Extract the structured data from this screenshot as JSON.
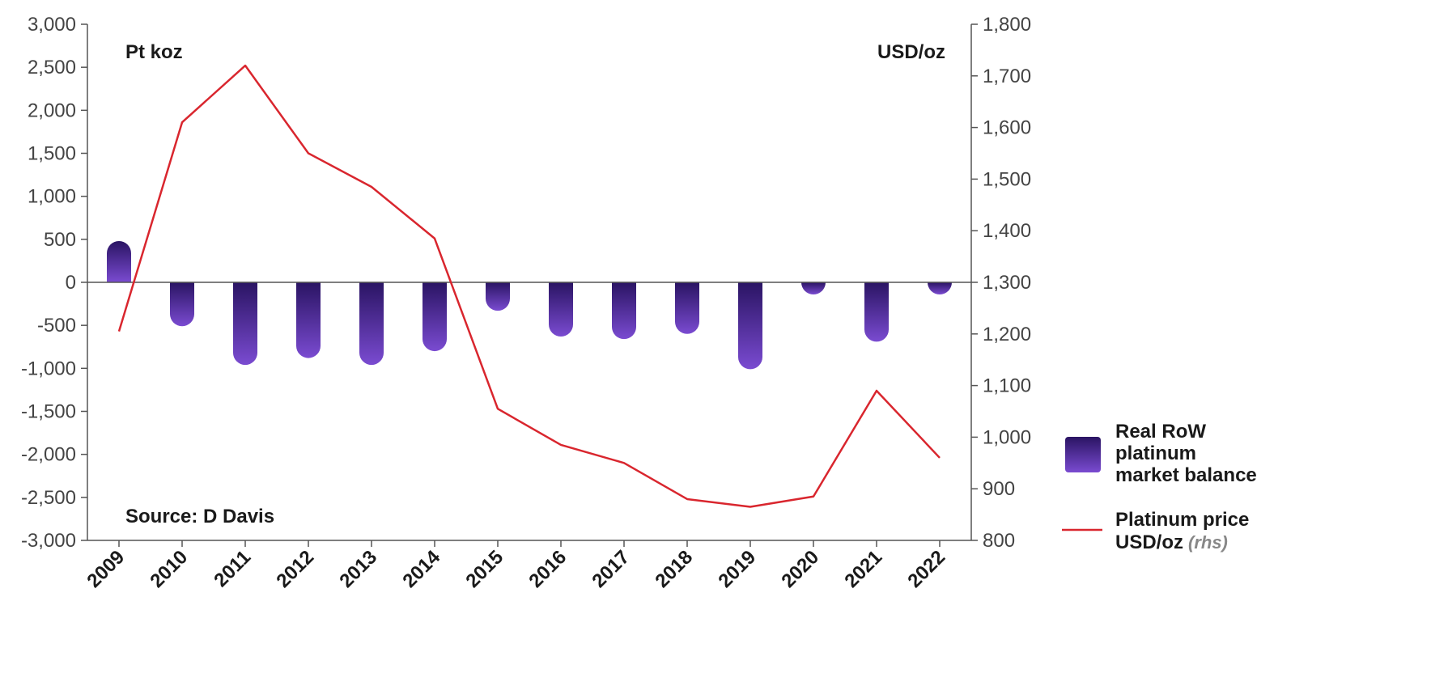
{
  "chart_data": {
    "type": "bar",
    "categories": [
      "2009",
      "2010",
      "2011",
      "2012",
      "2013",
      "2014",
      "2015",
      "2016",
      "2017",
      "2018",
      "2019",
      "2020",
      "2021",
      "2022"
    ],
    "series": [
      {
        "name": "Real RoW platinum market balance",
        "type": "bar",
        "axis": "left",
        "values": [
          480,
          -510,
          -960,
          -880,
          -960,
          -800,
          -330,
          -630,
          -660,
          -600,
          -1010,
          -80,
          -690,
          -60
        ]
      },
      {
        "name": "Platinum price USD/oz",
        "type": "line",
        "axis": "right",
        "values": [
          1205,
          1610,
          1720,
          1550,
          1485,
          1385,
          1055,
          985,
          950,
          880,
          865,
          885,
          1090,
          960
        ]
      }
    ],
    "left_axis": {
      "unit_label": "Pt koz",
      "ylim": [
        -3000,
        3000
      ],
      "ticks": [
        -3000,
        -2500,
        -2000,
        -1500,
        -1000,
        -500,
        0,
        500,
        1000,
        1500,
        2000,
        2500,
        3000
      ],
      "tick_labels": [
        "-3,000",
        "-2,500",
        "-2,000",
        "-1,500",
        "-1,000",
        "-500",
        "0",
        "500",
        "1,000",
        "1,500",
        "2,000",
        "2,500",
        "3,000"
      ]
    },
    "right_axis": {
      "unit_label": "USD/oz",
      "ylim": [
        800,
        1800
      ],
      "ticks": [
        800,
        900,
        1000,
        1100,
        1200,
        1300,
        1400,
        1500,
        1600,
        1700,
        1800
      ],
      "tick_labels": [
        "800",
        "900",
        "1,000",
        "1,100",
        "1,200",
        "1,300",
        "1,400",
        "1,500",
        "1,600",
        "1,700",
        "1,800"
      ]
    },
    "source": "Source: D Davis",
    "legend": {
      "placement": "bottom-right",
      "bar_label_lines": [
        "Real RoW",
        "platinum",
        "market balance"
      ],
      "line_label_lines": [
        "Platinum price",
        "USD/oz"
      ],
      "line_label_suffix": "(rhs)"
    },
    "colors": {
      "bar_top": "#2a1463",
      "bar_bottom": "#7a4bd1",
      "line": "#d9262e",
      "axis": "#555555"
    },
    "grid": false
  }
}
